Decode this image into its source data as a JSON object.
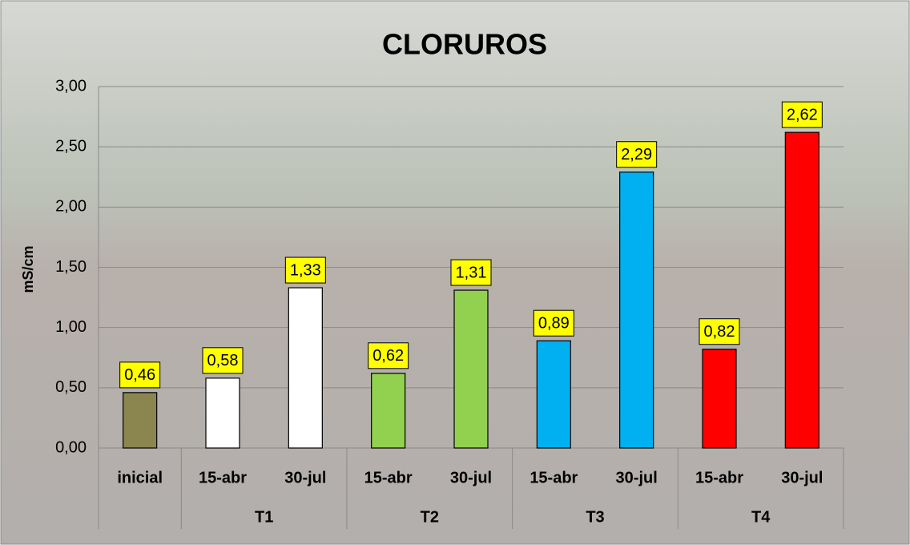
{
  "chart_data": {
    "type": "bar",
    "title": "CLORUROS",
    "y_label": "mS/cm",
    "categories": [
      "inicial",
      "15-abr",
      "30-jul",
      "15-abr",
      "30-jul",
      "15-abr",
      "30-jul",
      "15-abr",
      "30-jul"
    ],
    "groups": [
      null,
      "T1",
      "T1",
      "T2",
      "T2",
      "T3",
      "T3",
      "T4",
      "T4"
    ],
    "values": [
      0.46,
      0.58,
      1.33,
      0.62,
      1.31,
      0.89,
      2.29,
      0.82,
      2.62
    ],
    "value_labels": [
      "0,46",
      "0,58",
      "1,33",
      "0,62",
      "1,31",
      "0,89",
      "2,29",
      "0,82",
      "2,62"
    ],
    "colors": [
      "#8b8550",
      "#ffffff",
      "#ffffff",
      "#92d050",
      "#92d050",
      "#00b0f0",
      "#00b0f0",
      "#ff0000",
      "#ff0000"
    ],
    "ylim": [
      0,
      3
    ],
    "yticks": [
      {
        "value": 0,
        "label": "0,00"
      },
      {
        "value": 0.5,
        "label": "0,50"
      },
      {
        "value": 1,
        "label": "1,00"
      },
      {
        "value": 1.5,
        "label": "1,50"
      },
      {
        "value": 2,
        "label": "2,00"
      },
      {
        "value": 2.5,
        "label": "2,50"
      },
      {
        "value": 3,
        "label": "3,00"
      }
    ],
    "grid": true
  }
}
